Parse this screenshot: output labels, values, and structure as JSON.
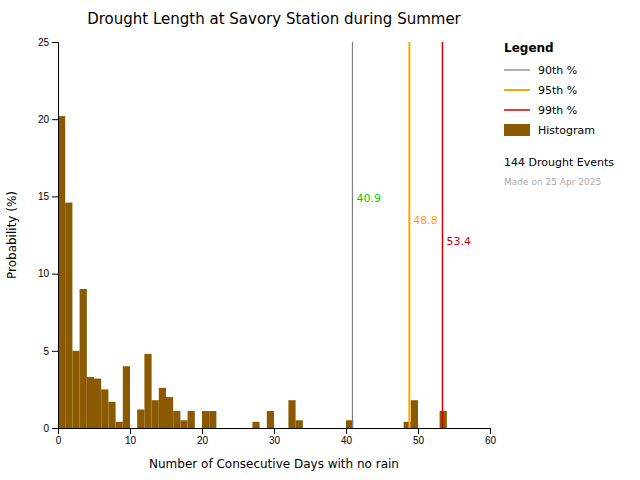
{
  "chart_data": {
    "type": "histogram",
    "title": "Drought Length at Savory Station during Summer",
    "xlabel": "Number of Consecutive Days with no rain",
    "ylabel": "Probability (%)",
    "name": "Histogram",
    "color": "#8B5A00",
    "bins": [
      0,
      1,
      2,
      3,
      4,
      5,
      6,
      7,
      8,
      9,
      10,
      11,
      12,
      13,
      14,
      15,
      16,
      17,
      18,
      19,
      20,
      21,
      22,
      23,
      24,
      25,
      26,
      27,
      28,
      29,
      30,
      31,
      32,
      33,
      34,
      35,
      36,
      37,
      38,
      39,
      40,
      41,
      42,
      43,
      44,
      45,
      46,
      47,
      48,
      49,
      50,
      51,
      52,
      53,
      54,
      55,
      56,
      57,
      58,
      59,
      60
    ],
    "values": [
      20.2,
      14.6,
      5.0,
      9.0,
      3.3,
      3.2,
      2.5,
      1.7,
      0.4,
      4.0,
      0.0,
      1.2,
      4.8,
      1.8,
      2.6,
      2.0,
      1.1,
      0.5,
      1.1,
      0.0,
      1.1,
      1.1,
      0.0,
      0.0,
      0.0,
      0.0,
      0.0,
      0.4,
      0.0,
      1.1,
      0.0,
      0.0,
      1.8,
      0.5,
      0.0,
      0.0,
      0.0,
      0.0,
      0.0,
      0.0,
      0.5,
      0.0,
      0.0,
      0.0,
      0.0,
      0.0,
      0.0,
      0.0,
      0.4,
      1.8,
      0.0,
      0.0,
      0.0,
      1.1,
      0.0,
      0.0,
      0.0,
      0.0,
      0.0,
      0.0
    ],
    "reference_lines": [
      {
        "name": "90th %",
        "value": 40.9,
        "color": "#808080",
        "label_color": "#00CC00"
      },
      {
        "name": "95th %",
        "value": 48.8,
        "color": "#FFA500",
        "label_color": "#FFA500"
      },
      {
        "name": "99th %",
        "value": 53.4,
        "color": "#CC0000",
        "label_color": "#CC0000"
      }
    ],
    "legend_title": "Legend",
    "legend": "right",
    "annotations": [
      {
        "text": "144 Drought Events",
        "color": "#000000"
      },
      {
        "text": "Made on 25 Apr 2025",
        "color": "#AAAAAA"
      }
    ],
    "xlim": [
      0,
      60
    ],
    "ylim": [
      0,
      25
    ],
    "xticks": [
      0,
      10,
      20,
      30,
      40,
      50,
      60
    ],
    "yticks": [
      0,
      5,
      10,
      15,
      20,
      25
    ],
    "grid": false
  }
}
